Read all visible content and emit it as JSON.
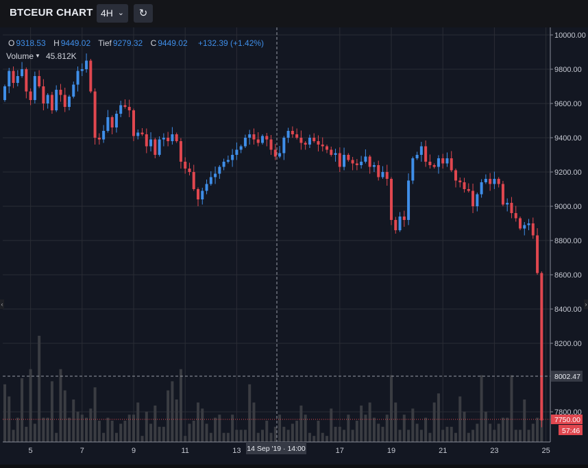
{
  "app": {
    "title": "BTCEUR CHART",
    "interval": "4H",
    "interval_caret": "⌄",
    "reset_icon": "↻"
  },
  "legend": {
    "o_label": "O",
    "o": "9318.53",
    "h_label": "H",
    "h": "9449.02",
    "l_label": "Tief",
    "l": "9279.32",
    "c_label": "C",
    "c": "9449.02",
    "change": "+132.39 (+1.42%)",
    "volume_label": "Volume",
    "volume_value": "45.812K"
  },
  "crosshair": {
    "time_label": "14 Sep '19 · 14:00",
    "price_label": "8002.47"
  },
  "last_price": {
    "price": "7750.00",
    "countdown": "57:46"
  },
  "colors": {
    "up": "#3f8ee8",
    "down": "#e0474f",
    "grid": "#2a2d35",
    "background": "#131722"
  },
  "chart_data": {
    "type": "candlestick",
    "y_ticks": [
      "10000.00",
      "9800.00",
      "9600.00",
      "9400.00",
      "9200.00",
      "9000.00",
      "8800.00",
      "8600.00",
      "8400.00",
      "8200.00",
      "7800.00"
    ],
    "ylim": [
      7600,
      10040
    ],
    "x_ticks": [
      {
        "label": "5",
        "x": 4.33
      },
      {
        "label": "7",
        "x": 6.33
      },
      {
        "label": "9",
        "x": 8.33
      },
      {
        "label": "11",
        "x": 10.33
      },
      {
        "label": "13",
        "x": 12.33
      },
      {
        "label": "17",
        "x": 16.33
      },
      {
        "label": "19",
        "x": 18.33
      },
      {
        "label": "21",
        "x": 20.33
      },
      {
        "label": "23",
        "x": 22.33
      },
      {
        "label": "25",
        "x": 24.33
      }
    ],
    "xlim": [
      3.25,
      24.5
    ],
    "closes": [
      9700,
      9790,
      9720,
      9760,
      9800,
      9670,
      9620,
      9760,
      9700,
      9600,
      9650,
      9560,
      9680,
      9650,
      9580,
      9640,
      9710,
      9790,
      9800,
      9850,
      9670,
      9400,
      9390,
      9440,
      9520,
      9460,
      9540,
      9590,
      9580,
      9560,
      9410,
      9430,
      9420,
      9350,
      9390,
      9300,
      9390,
      9400,
      9380,
      9420,
      9380,
      9260,
      9220,
      9200,
      9100,
      9040,
      9090,
      9130,
      9170,
      9190,
      9230,
      9260,
      9270,
      9300,
      9330,
      9350,
      9400,
      9420,
      9390,
      9370,
      9410,
      9390,
      9330,
      9290,
      9310,
      9400,
      9440,
      9420,
      9400,
      9370,
      9360,
      9400,
      9380,
      9360,
      9350,
      9330,
      9300,
      9310,
      9230,
      9300,
      9270,
      9250,
      9240,
      9260,
      9290,
      9230,
      9240,
      9170,
      9200,
      9160,
      8920,
      8860,
      8940,
      8920,
      9150,
      9280,
      9300,
      9350,
      9260,
      9240,
      9230,
      9280,
      9250,
      9280,
      9210,
      9150,
      9140,
      9100,
      9090,
      9000,
      9070,
      9140,
      9160,
      9130,
      9160,
      9130,
      9010,
      9020,
      8960,
      8930,
      8870,
      8890,
      8900,
      8830,
      8610,
      7750
    ],
    "volumes": [
      19,
      15,
      4,
      8,
      21,
      5,
      24,
      6,
      35,
      8,
      8,
      20,
      3,
      24,
      17,
      8,
      14,
      10,
      9,
      8,
      11,
      18,
      7,
      3,
      8,
      7,
      3,
      6,
      7,
      9,
      9,
      13,
      2,
      10,
      6,
      12,
      5,
      5,
      17,
      20,
      14,
      24,
      2,
      6,
      7,
      13,
      11,
      6,
      3,
      8,
      9,
      3,
      3,
      9,
      4,
      4,
      4,
      19,
      13,
      3,
      4,
      7,
      3,
      5,
      9,
      5,
      4,
      6,
      7,
      12,
      9,
      3,
      2,
      7,
      3,
      2,
      11,
      5,
      5,
      4,
      9,
      4,
      7,
      12,
      9,
      13,
      8,
      6,
      5,
      9,
      22,
      13,
      4,
      9,
      4,
      11,
      6,
      4,
      8,
      3,
      13,
      16,
      4,
      5,
      5,
      3,
      15,
      10,
      3,
      4,
      6,
      22,
      10,
      6,
      4,
      6,
      8,
      8,
      22,
      4,
      4,
      14,
      4,
      6,
      8,
      13
    ]
  }
}
